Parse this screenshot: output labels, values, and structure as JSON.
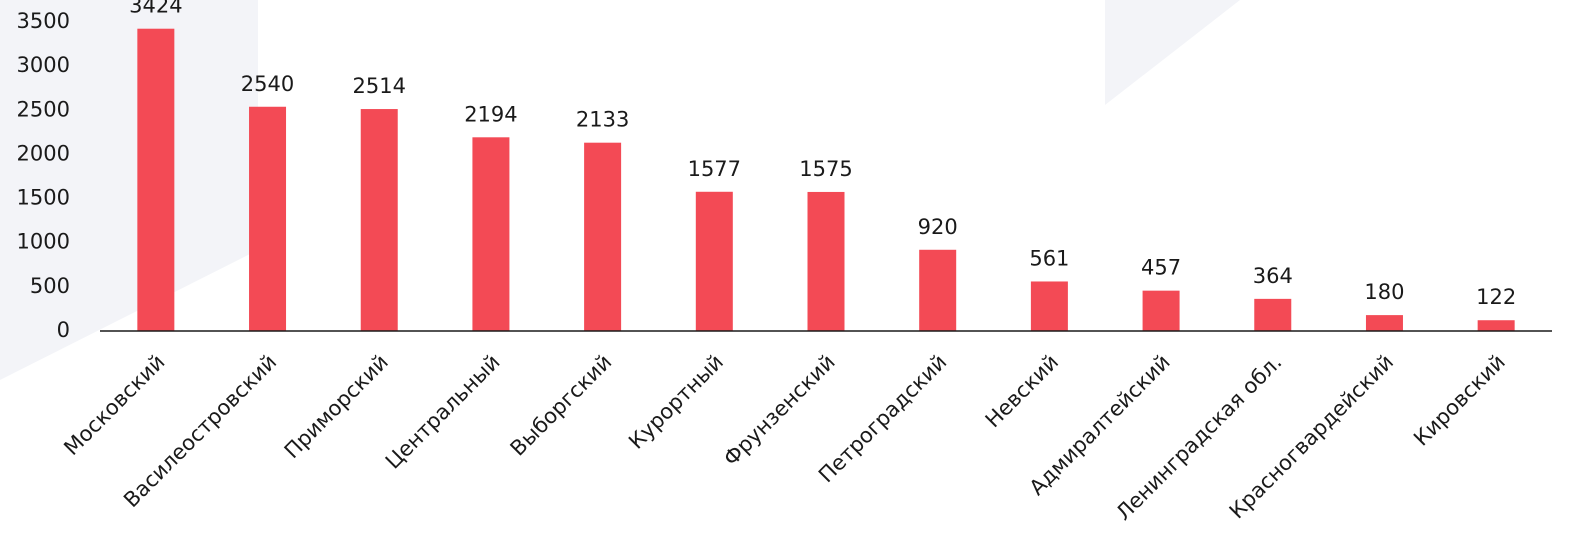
{
  "chart_data": {
    "type": "bar",
    "categories": [
      "Московский",
      "Василеостровский",
      "Приморский",
      "Центральный",
      "Выборгский",
      "Курортный",
      "Фрунзенский",
      "Петроградский",
      "Невский",
      "Адмиралтейский",
      "Ленинградская обл.",
      "Красногвардейский",
      "Кировский"
    ],
    "values": [
      3424,
      2540,
      2514,
      2194,
      2133,
      1577,
      1575,
      920,
      561,
      457,
      364,
      180,
      122
    ],
    "color": "#f34a55",
    "ylim": [
      0,
      3500
    ],
    "yticks": [
      0,
      500,
      1000,
      1500,
      2000,
      2500,
      3000,
      3500
    ],
    "grid": false
  }
}
